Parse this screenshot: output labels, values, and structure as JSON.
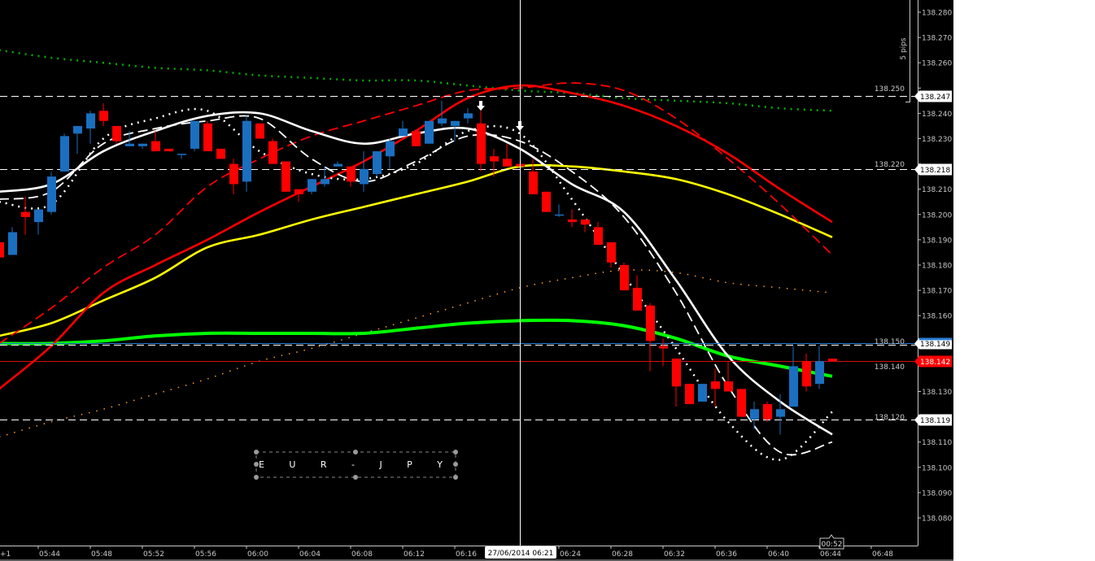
{
  "chart_data": {
    "type": "candlestick",
    "symbol_label": "E U R - J P Y",
    "background": "#000000",
    "colors": {
      "up": "#1a6fc0",
      "down": "#ff0000",
      "axis": "#c8c8c8"
    },
    "ylim": [
      138.075,
      138.285
    ],
    "y_ticks": [
      "138.280",
      "138.270",
      "138.260",
      "138.250",
      "138.240",
      "138.230",
      "138.220",
      "138.210",
      "138.200",
      "138.190",
      "138.180",
      "138.170",
      "138.160",
      "138.150",
      "138.140",
      "138.130",
      "138.120",
      "138.110",
      "138.100",
      "138.090",
      "138.080"
    ],
    "x_first_label": "+1",
    "x_ticks": [
      "05:44",
      "05:48",
      "05:52",
      "05:56",
      "06:00",
      "06:04",
      "06:08",
      "06:12",
      "06:16",
      "06:20",
      "06:24",
      "06:28",
      "06:32",
      "06:36",
      "06:40",
      "06:44",
      "06:48"
    ],
    "hidden_x_tick": "06:20",
    "crosshair": {
      "time": "06:21",
      "label": "27/06/2014 06:21"
    },
    "countdown_label": "00:52",
    "range_marker": {
      "label": "5 pips"
    },
    "candles_columns": [
      "time",
      "open",
      "high",
      "low",
      "close"
    ],
    "candles": [
      [
        "05:41",
        138.189,
        138.19,
        138.182,
        138.183
      ],
      [
        "05:42",
        138.184,
        138.195,
        138.184,
        138.193
      ],
      [
        "05:43",
        138.201,
        138.207,
        138.192,
        138.199
      ],
      [
        "05:44",
        138.197,
        138.202,
        138.192,
        138.202
      ],
      [
        "05:45",
        138.201,
        138.217,
        138.2,
        138.215
      ],
      [
        "05:46",
        138.217,
        138.232,
        138.217,
        138.231
      ],
      [
        "05:47",
        138.232,
        138.235,
        138.224,
        138.235
      ],
      [
        "05:48",
        138.234,
        138.241,
        138.228,
        138.24
      ],
      [
        "05:49",
        138.241,
        138.244,
        138.235,
        138.237
      ],
      [
        "05:50",
        138.235,
        138.235,
        138.228,
        138.229
      ],
      [
        "05:51",
        138.227,
        138.233,
        138.227,
        138.228
      ],
      [
        "05:52",
        138.227,
        138.228,
        138.226,
        138.228
      ],
      [
        "05:53",
        138.229,
        138.233,
        138.225,
        138.225
      ],
      [
        "05:54",
        138.226,
        138.226,
        138.225,
        138.225
      ],
      [
        "05:55",
        138.224,
        138.224,
        138.222,
        138.224
      ],
      [
        "05:56",
        138.226,
        138.237,
        138.225,
        138.237
      ],
      [
        "05:57",
        138.236,
        138.237,
        138.225,
        138.225
      ],
      [
        "05:58",
        138.226,
        138.226,
        138.222,
        138.222
      ],
      [
        "05:59",
        138.22,
        138.222,
        138.208,
        138.212
      ],
      [
        "06:00",
        138.213,
        138.239,
        138.209,
        138.237
      ],
      [
        "06:01",
        138.236,
        138.236,
        138.23,
        138.23
      ],
      [
        "06:02",
        138.229,
        138.23,
        138.22,
        138.22
      ],
      [
        "06:03",
        138.221,
        138.221,
        138.209,
        138.209
      ],
      [
        "06:04",
        138.21,
        138.21,
        138.205,
        138.208
      ],
      [
        "06:05",
        138.209,
        138.214,
        138.208,
        138.214
      ],
      [
        "06:06",
        138.212,
        138.219,
        138.211,
        138.214
      ],
      [
        "06:07",
        138.219,
        138.221,
        138.219,
        138.22
      ],
      [
        "06:08",
        138.219,
        138.219,
        138.211,
        138.213
      ],
      [
        "06:09",
        138.212,
        138.225,
        138.209,
        138.218
      ],
      [
        "06:10",
        138.216,
        138.225,
        138.215,
        138.225
      ],
      [
        "06:11",
        138.223,
        138.23,
        138.218,
        138.229
      ],
      [
        "06:12",
        138.231,
        138.237,
        138.231,
        138.234
      ],
      [
        "06:13",
        138.233,
        138.233,
        138.227,
        138.227
      ],
      [
        "06:14",
        138.228,
        138.237,
        138.228,
        138.237
      ],
      [
        "06:15",
        138.236,
        138.245,
        138.235,
        138.238
      ],
      [
        "06:16",
        138.235,
        138.237,
        138.229,
        138.237
      ],
      [
        "06:17",
        138.238,
        138.242,
        138.236,
        138.24
      ],
      [
        "06:18",
        138.236,
        138.241,
        138.217,
        138.22
      ],
      [
        "06:19",
        138.223,
        138.226,
        138.215,
        138.221
      ],
      [
        "06:20",
        138.222,
        138.228,
        138.219,
        138.219
      ],
      [
        "06:21",
        138.22,
        138.22,
        138.219,
        138.219
      ],
      [
        "06:22",
        138.217,
        138.222,
        138.208,
        138.208
      ],
      [
        "06:23",
        138.209,
        138.209,
        138.201,
        138.201
      ],
      [
        "06:24",
        138.2,
        138.204,
        138.199,
        138.2
      ],
      [
        "06:25",
        138.198,
        138.202,
        138.195,
        138.197
      ],
      [
        "06:26",
        138.198,
        138.198,
        138.193,
        138.196
      ],
      [
        "06:27",
        138.195,
        138.197,
        138.188,
        138.188
      ],
      [
        "06:28",
        138.189,
        138.189,
        138.179,
        138.181
      ],
      [
        "06:29",
        138.18,
        138.181,
        138.17,
        138.17
      ],
      [
        "06:30",
        138.171,
        138.176,
        138.162,
        138.162
      ],
      [
        "06:31",
        138.164,
        138.165,
        138.138,
        138.15
      ],
      [
        "06:32",
        138.148,
        138.151,
        138.14,
        138.147
      ],
      [
        "06:33",
        138.143,
        138.143,
        138.124,
        138.132
      ],
      [
        "06:34",
        138.133,
        138.133,
        138.125,
        138.125
      ],
      [
        "06:35",
        138.126,
        138.133,
        138.126,
        138.133
      ],
      [
        "06:36",
        138.134,
        138.139,
        138.124,
        138.131
      ],
      [
        "06:37",
        138.134,
        138.142,
        138.13,
        138.13
      ],
      [
        "06:38",
        138.131,
        138.131,
        138.12,
        138.12
      ],
      [
        "06:39",
        138.119,
        138.126,
        138.115,
        138.123
      ],
      [
        "06:40",
        138.125,
        138.126,
        138.118,
        138.119
      ],
      [
        "06:41",
        138.12,
        138.129,
        138.113,
        138.123
      ],
      [
        "06:42",
        138.124,
        138.148,
        138.124,
        138.14
      ],
      [
        "06:43",
        138.142,
        138.145,
        138.13,
        138.132
      ],
      [
        "06:44",
        138.133,
        138.148,
        138.131,
        138.142
      ],
      [
        "06:45",
        138.143,
        138.143,
        138.142,
        138.142
      ]
    ],
    "indicator_times": [
      "05:41",
      "05:45",
      "05:49",
      "05:53",
      "05:57",
      "06:01",
      "06:05",
      "06:09",
      "06:13",
      "06:17",
      "06:21",
      "06:25",
      "06:29",
      "06:33",
      "06:37",
      "06:41",
      "06:45"
    ],
    "indicators": [
      {
        "color": "#00b000",
        "style": "dotted",
        "values": [
          138.265,
          138.262,
          138.26,
          138.258,
          138.257,
          138.255,
          138.254,
          138.253,
          138.253,
          138.251,
          138.249,
          138.248,
          138.246,
          138.245,
          138.244,
          138.242,
          138.241
        ]
      },
      {
        "color": "#ff9a30",
        "style": "dotted-thin",
        "values": [
          138.112,
          138.118,
          138.123,
          138.129,
          138.135,
          138.142,
          138.147,
          138.153,
          138.159,
          138.165,
          138.171,
          138.175,
          138.178,
          138.177,
          138.173,
          138.171,
          138.169
        ]
      },
      {
        "color": "#00ff00",
        "style": "solid-thick",
        "values": [
          138.149,
          138.149,
          138.15,
          138.152,
          138.153,
          138.153,
          138.153,
          138.153,
          138.155,
          138.157,
          138.158,
          138.158,
          138.156,
          138.151,
          138.144,
          138.14,
          138.136
        ]
      },
      {
        "color": "#ffff00",
        "style": "solid",
        "values": [
          138.152,
          138.157,
          138.166,
          138.175,
          138.187,
          138.192,
          138.198,
          138.203,
          138.208,
          138.213,
          138.219,
          138.219,
          138.217,
          138.214,
          138.208,
          138.2,
          138.191
        ]
      },
      {
        "color": "#ff0000",
        "style": "dashed",
        "values": [
          138.149,
          138.163,
          138.179,
          138.192,
          138.211,
          138.222,
          138.231,
          138.237,
          138.243,
          138.249,
          138.25,
          138.252,
          138.249,
          138.238,
          138.222,
          138.204,
          138.184
        ]
      },
      {
        "color": "#ff0000",
        "style": "solid",
        "values": [
          138.131,
          138.148,
          138.169,
          138.18,
          138.19,
          138.201,
          138.211,
          138.221,
          138.233,
          138.246,
          138.251,
          138.248,
          138.243,
          138.235,
          138.224,
          138.21,
          138.197
        ]
      },
      {
        "color": "#ffffff",
        "style": "dotted",
        "values": [
          138.205,
          138.204,
          138.23,
          138.238,
          138.241,
          138.225,
          138.216,
          138.214,
          138.22,
          138.233,
          138.232,
          138.206,
          138.176,
          138.147,
          138.118,
          138.103,
          138.122
        ]
      },
      {
        "color": "#ffffff",
        "style": "dashed",
        "values": [
          138.206,
          138.209,
          138.228,
          138.234,
          138.237,
          138.238,
          138.222,
          138.213,
          138.221,
          138.231,
          138.229,
          138.217,
          138.199,
          138.169,
          138.132,
          138.106,
          138.11
        ]
      },
      {
        "color": "#ffffff",
        "style": "solid",
        "values": [
          138.209,
          138.212,
          138.225,
          138.233,
          138.239,
          138.24,
          138.233,
          138.228,
          138.232,
          138.234,
          138.226,
          138.212,
          138.201,
          138.174,
          138.144,
          138.126,
          138.113
        ]
      }
    ],
    "levels": [
      {
        "price": 138.247,
        "label": "138.247",
        "line": "#ffffff",
        "style": "dashed",
        "tag_bg": "#ffffff",
        "tag_fg": "#000000"
      },
      {
        "price": 138.218,
        "label": "138.218",
        "line": "#ffffff",
        "style": "dashed",
        "tag_bg": "#ffffff",
        "tag_fg": "#000000"
      },
      {
        "price": 138.149,
        "label": "138.149",
        "line": "#2a7fd4",
        "style": "solid",
        "tag_bg": "#ffffff",
        "tag_fg": "#000000",
        "accent": "#2a7fd4"
      },
      {
        "price": 138.142,
        "label": "138.142",
        "line": "#d01010",
        "style": "solid",
        "tag_bg": "#ff0000",
        "tag_fg": "#ffffff"
      },
      {
        "price": 138.119,
        "label": "138.119",
        "line": "#ffffff",
        "style": "dashed",
        "tag_bg": "#ffffff",
        "tag_fg": "#000000"
      }
    ],
    "signal_arrows": [
      {
        "time": "06:18",
        "price": 138.243,
        "direction": "down"
      },
      {
        "time": "06:21",
        "price": 138.235,
        "direction": "down"
      }
    ]
  }
}
